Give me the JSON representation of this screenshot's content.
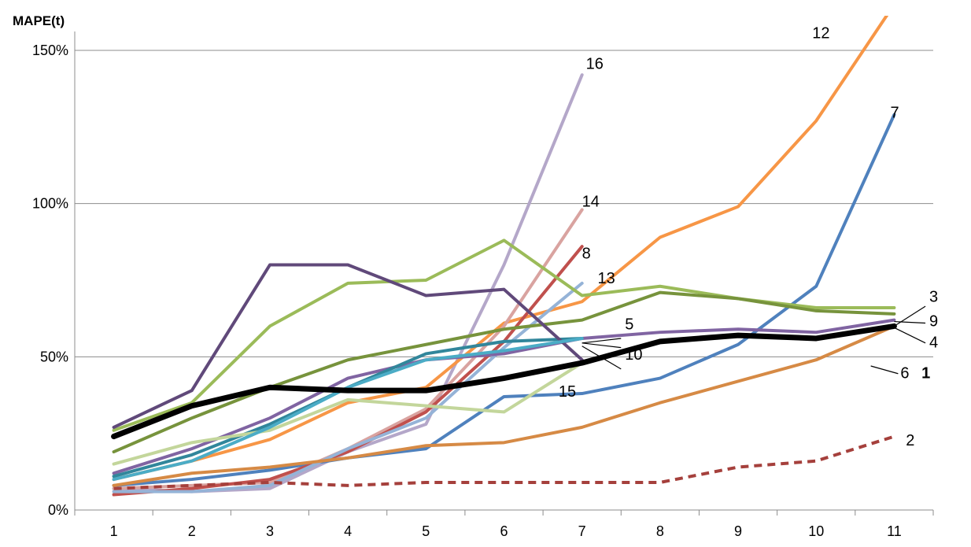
{
  "chart_data": {
    "type": "line",
    "title": "",
    "xlabel": "",
    "ylabel": "MAPE(t)",
    "x": [
      1,
      2,
      3,
      4,
      5,
      6,
      7,
      8,
      9,
      10,
      11
    ],
    "xlim": [
      0.5,
      11.5
    ],
    "ylim": [
      0,
      1.5
    ],
    "yticks": [
      0,
      0.5,
      1.0,
      1.5
    ],
    "ytick_labels": [
      "0%",
      "50%",
      "100%",
      "150%"
    ],
    "grid": true,
    "series": [
      {
        "name": "16",
        "color": "#B4A7C9",
        "values": [
          0.07,
          0.06,
          0.07,
          0.19,
          0.28,
          0.8,
          1.42,
          null,
          null,
          null,
          null
        ]
      },
      {
        "name": "12",
        "color": "#F79646",
        "values": [
          0.1,
          0.16,
          0.23,
          0.35,
          0.4,
          0.61,
          0.68,
          0.89,
          0.99,
          1.27,
          1.65
        ]
      },
      {
        "name": "7",
        "color": "#4F81BD",
        "values": [
          0.08,
          0.1,
          0.13,
          0.17,
          0.2,
          0.37,
          0.38,
          0.43,
          0.54,
          0.73,
          1.29
        ]
      },
      {
        "name": "14",
        "color": "#D9A3A0",
        "values": [
          0.07,
          0.08,
          0.09,
          0.2,
          0.33,
          0.6,
          0.98,
          null,
          null,
          null,
          null
        ]
      },
      {
        "name": "8",
        "color": "#C0504D",
        "values": [
          0.05,
          0.07,
          0.1,
          0.19,
          0.32,
          0.55,
          0.86,
          null,
          null,
          null,
          null
        ]
      },
      {
        "name": "13",
        "color": "#95B3D7",
        "values": [
          0.06,
          0.06,
          0.08,
          0.2,
          0.3,
          0.53,
          0.74,
          null,
          null,
          null,
          null
        ]
      },
      {
        "name": "3",
        "color": "#9BBB59",
        "values": [
          0.26,
          0.35,
          0.6,
          0.74,
          0.75,
          0.88,
          0.7,
          0.73,
          0.69,
          0.66,
          0.66
        ]
      },
      {
        "name": "9",
        "color": "#8064A2",
        "values": [
          0.12,
          0.2,
          0.3,
          0.43,
          0.49,
          0.51,
          0.56,
          0.58,
          0.59,
          0.58,
          0.62
        ]
      },
      {
        "name": "4",
        "color": "#77933C",
        "values": [
          0.19,
          0.3,
          0.4,
          0.49,
          0.54,
          0.59,
          0.62,
          0.71,
          0.69,
          0.65,
          0.64
        ]
      },
      {
        "name": "5",
        "color": "#31869B",
        "values": [
          0.11,
          0.18,
          0.28,
          0.4,
          0.51,
          0.55,
          0.56,
          null,
          null,
          null,
          null
        ]
      },
      {
        "name": "10",
        "color": "#60497A",
        "values": [
          0.27,
          0.39,
          0.8,
          0.8,
          0.7,
          0.72,
          0.49,
          null,
          null,
          null,
          null
        ]
      },
      {
        "name": "15",
        "color": "#C3D69B",
        "values": [
          0.15,
          0.22,
          0.26,
          0.36,
          0.34,
          0.32,
          0.48,
          null,
          null,
          null,
          null
        ]
      },
      {
        "name": "",
        "color": "#4BACC6",
        "values": [
          0.1,
          0.16,
          0.27,
          0.4,
          0.49,
          0.52,
          0.56,
          null,
          null,
          null,
          null
        ]
      },
      {
        "name": "6",
        "color": "#D68A45",
        "values": [
          0.08,
          0.12,
          0.14,
          0.17,
          0.21,
          0.22,
          0.27,
          0.35,
          0.42,
          0.49,
          0.6
        ]
      },
      {
        "name": "1",
        "color": "#000000",
        "values": [
          0.24,
          0.34,
          0.4,
          0.39,
          0.39,
          0.43,
          0.48,
          0.55,
          0.57,
          0.56,
          0.6
        ]
      },
      {
        "name": "2",
        "color": "#A5403C",
        "dashed": true,
        "values": [
          0.07,
          0.08,
          0.09,
          0.08,
          0.09,
          0.09,
          0.09,
          0.09,
          0.14,
          0.16,
          0.24
        ]
      }
    ],
    "annotations": [
      {
        "text": "16",
        "x": 7.05,
        "y": 1.44
      },
      {
        "text": "12",
        "x": 9.95,
        "y": 1.54
      },
      {
        "text": "7",
        "x": 10.95,
        "y": 1.28
      },
      {
        "text": "14",
        "x": 7.0,
        "y": 0.99
      },
      {
        "text": "8",
        "x": 7.0,
        "y": 0.82
      },
      {
        "text": "13",
        "x": 7.2,
        "y": 0.74
      },
      {
        "text": "5",
        "x": 7.55,
        "y": 0.59
      },
      {
        "text": "10",
        "x": 7.55,
        "y": 0.49
      },
      {
        "text": "15",
        "x": 6.7,
        "y": 0.37
      },
      {
        "text": "3",
        "x": 11.45,
        "y": 0.68
      },
      {
        "text": "9",
        "x": 11.45,
        "y": 0.6
      },
      {
        "text": "4",
        "x": 11.45,
        "y": 0.53
      },
      {
        "text": "6",
        "x": 11.08,
        "y": 0.43
      },
      {
        "text": "1",
        "x": 11.35,
        "y": 0.43,
        "bold": true
      },
      {
        "text": "2",
        "x": 11.15,
        "y": 0.21
      }
    ]
  }
}
